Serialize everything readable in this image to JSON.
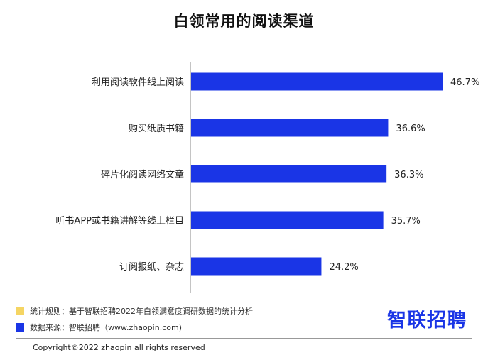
{
  "chart_data": {
    "type": "bar",
    "orientation": "horizontal",
    "title": "白领常用的阅读渠道",
    "categories": [
      "利用阅读软件线上阅读",
      "购买纸质书籍",
      "碎片化阅读网络文章",
      "听书APP或书籍讲解等线上栏目",
      "订阅报纸、杂志"
    ],
    "values": [
      46.7,
      36.6,
      36.3,
      35.7,
      24.2
    ],
    "value_labels": [
      "46.7%",
      "36.6%",
      "36.3%",
      "35.7%",
      "24.2%"
    ],
    "xlim": [
      0,
      60
    ],
    "grid": false,
    "bar_color": "#1a35e6"
  },
  "footer": {
    "stats_rule": "统计规则：基于智联招聘2022年白领满意度调研数据的统计分析",
    "data_source": "数据来源：智联招聘（www.zhaopin.com)",
    "stats_color": "#f5d563",
    "source_color": "#1a35e6",
    "logo": "智联招聘",
    "copyright": "Copyright©2022 zhaopin all rights reserved"
  }
}
